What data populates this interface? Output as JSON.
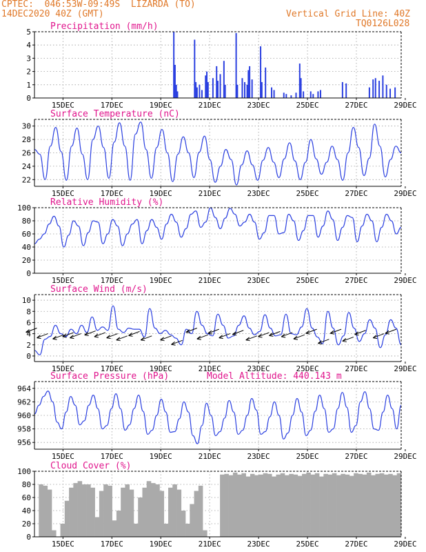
{
  "header": {
    "line1": "CPTEC:  046:53W-09:49S  LIZARDA (TO)",
    "line2": "14DEC2020 40Z (GMT)",
    "grid_note": "Vertical Grid Line: 40Z",
    "code": "TQ0126L028"
  },
  "colors": {
    "header": "#e07828",
    "panel_title": "#e0148c",
    "series": "#2a3fe0",
    "cloud": "#aaaaaa",
    "wind_arrow": "#000000"
  },
  "chart_data": [
    {
      "type": "bar",
      "title": "Precipitation (mm/h)",
      "x_ticks": [
        "15DEC",
        "17DEC",
        "19DEC",
        "21DEC",
        "23DEC",
        "25DEC",
        "27DEC",
        "29DEC"
      ],
      "ylim": [
        0,
        5
      ],
      "y_ticks": [
        0,
        1,
        2,
        3,
        4,
        5
      ],
      "grid": true,
      "events": [
        {
          "day": 19.7,
          "value": 5.0
        },
        {
          "day": 19.75,
          "value": 2.5
        },
        {
          "day": 19.8,
          "value": 1.0
        },
        {
          "day": 19.85,
          "value": 0.5
        },
        {
          "day": 20.55,
          "value": 4.4
        },
        {
          "day": 20.6,
          "value": 1.2
        },
        {
          "day": 20.65,
          "value": 0.8
        },
        {
          "day": 20.75,
          "value": 1.0
        },
        {
          "day": 20.85,
          "value": 0.6
        },
        {
          "day": 21.0,
          "value": 1.7
        },
        {
          "day": 21.05,
          "value": 2.0
        },
        {
          "day": 21.1,
          "value": 1.2
        },
        {
          "day": 21.3,
          "value": 1.5
        },
        {
          "day": 21.45,
          "value": 2.4
        },
        {
          "day": 21.5,
          "value": 1.3
        },
        {
          "day": 21.6,
          "value": 1.8
        },
        {
          "day": 21.75,
          "value": 2.8
        },
        {
          "day": 21.8,
          "value": 1.0
        },
        {
          "day": 22.25,
          "value": 4.9
        },
        {
          "day": 22.3,
          "value": 1.0
        },
        {
          "day": 22.5,
          "value": 1.5
        },
        {
          "day": 22.6,
          "value": 1.2
        },
        {
          "day": 22.7,
          "value": 1.0
        },
        {
          "day": 22.75,
          "value": 2.1
        },
        {
          "day": 22.8,
          "value": 2.4
        },
        {
          "day": 22.9,
          "value": 1.4
        },
        {
          "day": 23.25,
          "value": 3.9
        },
        {
          "day": 23.3,
          "value": 1.2
        },
        {
          "day": 23.45,
          "value": 2.3
        },
        {
          "day": 23.7,
          "value": 0.8
        },
        {
          "day": 23.8,
          "value": 0.6
        },
        {
          "day": 24.2,
          "value": 0.4
        },
        {
          "day": 24.3,
          "value": 0.3
        },
        {
          "day": 24.5,
          "value": 0.2
        },
        {
          "day": 24.7,
          "value": 0.4
        },
        {
          "day": 24.85,
          "value": 2.6
        },
        {
          "day": 24.9,
          "value": 1.5
        },
        {
          "day": 25.0,
          "value": 0.5
        },
        {
          "day": 25.3,
          "value": 0.5
        },
        {
          "day": 25.4,
          "value": 0.3
        },
        {
          "day": 25.6,
          "value": 0.5
        },
        {
          "day": 25.7,
          "value": 0.6
        },
        {
          "day": 26.6,
          "value": 1.2
        },
        {
          "day": 26.75,
          "value": 1.1
        },
        {
          "day": 27.7,
          "value": 0.8
        },
        {
          "day": 27.85,
          "value": 1.4
        },
        {
          "day": 27.95,
          "value": 1.5
        },
        {
          "day": 28.1,
          "value": 1.3
        },
        {
          "day": 28.25,
          "value": 1.7
        },
        {
          "day": 28.4,
          "value": 1.0
        },
        {
          "day": 28.55,
          "value": 0.7
        },
        {
          "day": 28.75,
          "value": 0.8
        }
      ]
    },
    {
      "type": "line",
      "title": "Surface Temperature (nC)",
      "x_ticks": [
        "15DEC",
        "17DEC",
        "19DEC",
        "21DEC",
        "23DEC",
        "25DEC",
        "27DEC",
        "29DEC"
      ],
      "ylim": [
        21,
        31
      ],
      "y_ticks": [
        22,
        24,
        26,
        28,
        30
      ],
      "grid": true,
      "series": [
        {
          "values": [
            26.5,
            25.8,
            22.0,
            27.0,
            29.8,
            26.2,
            21.9,
            27.0,
            29.7,
            25.8,
            22.0,
            28.0,
            30.0,
            26.8,
            22.2,
            27.6,
            30.5,
            27.0,
            21.9,
            28.8,
            30.6,
            26.5,
            22.2,
            26.8,
            29.5,
            26.0,
            21.7,
            25.8,
            28.4,
            26.0,
            22.3,
            26.1,
            28.5,
            25.0,
            21.6,
            24.0,
            26.5,
            25.0,
            21.2,
            24.2,
            26.3,
            24.2,
            21.9,
            24.9,
            26.8,
            24.6,
            22.3,
            25.1,
            27.5,
            24.8,
            22.0,
            24.6,
            28.0,
            25.1,
            22.8,
            24.6,
            27.0,
            25.0,
            21.9,
            26.0,
            29.8,
            26.8,
            22.6,
            25.2,
            30.3,
            27.0,
            22.4,
            25.0,
            27.0,
            26.0
          ]
        }
      ]
    },
    {
      "type": "line",
      "title": "Relative Humidity (%)",
      "x_ticks": [
        "15DEC",
        "17DEC",
        "19DEC",
        "21DEC",
        "23DEC",
        "25DEC",
        "27DEC",
        "29DEC"
      ],
      "ylim": [
        0,
        100
      ],
      "y_ticks": [
        0,
        20,
        40,
        60,
        80,
        100
      ],
      "grid": true,
      "series": [
        {
          "values": [
            45,
            52,
            60,
            75,
            87,
            72,
            40,
            58,
            80,
            72,
            42,
            62,
            80,
            78,
            45,
            60,
            82,
            72,
            42,
            60,
            75,
            82,
            45,
            65,
            82,
            70,
            52,
            75,
            90,
            78,
            55,
            68,
            90,
            95,
            70,
            78,
            100,
            85,
            68,
            84,
            99,
            90,
            72,
            78,
            90,
            78,
            52,
            62,
            88,
            88,
            60,
            62,
            90,
            80,
            50,
            65,
            88,
            88,
            55,
            72,
            95,
            82,
            50,
            70,
            88,
            85,
            48,
            72,
            90,
            80,
            48,
            70,
            90,
            80,
            60,
            70
          ]
        }
      ]
    },
    {
      "type": "line",
      "title": "Surface Wind (m/s)",
      "x_ticks": [
        "15DEC",
        "17DEC",
        "19DEC",
        "21DEC",
        "23DEC",
        "25DEC",
        "27DEC",
        "29DEC"
      ],
      "ylim": [
        -1,
        11
      ],
      "y_ticks": [
        0,
        2,
        4,
        6,
        8,
        10
      ],
      "grid": true,
      "series": [
        {
          "values": [
            1.0,
            0.2,
            3.0,
            3.5,
            5.5,
            4.0,
            3.5,
            4.8,
            4.0,
            5.5,
            4.2,
            7.0,
            4.6,
            5.2,
            4.6,
            9.0,
            4.8,
            4.2,
            5.0,
            4.8,
            4.8,
            3.4,
            8.5,
            5.0,
            4.0,
            4.6,
            3.8,
            3.2,
            2.0,
            4.8,
            4.0,
            8.0,
            5.5,
            4.0,
            3.6,
            7.5,
            5.5,
            3.2,
            3.6,
            5.5,
            7.2,
            5.0,
            3.8,
            4.4,
            7.4,
            5.0,
            3.6,
            3.8,
            7.5,
            4.0,
            3.8,
            5.2,
            8.5,
            5.0,
            3.4,
            2.2,
            8.0,
            5.0,
            2.0,
            3.6,
            7.8,
            5.0,
            2.6,
            4.0,
            6.5,
            5.0,
            1.5,
            3.8,
            6.5,
            5.0,
            2.0
          ]
        }
      ],
      "arrows": [
        {
          "day": 14.1,
          "y": 5.0
        },
        {
          "day": 14.55,
          "y": 4.0
        },
        {
          "day": 15.2,
          "y": 3.8
        },
        {
          "day": 15.6,
          "y": 4.2
        },
        {
          "day": 15.9,
          "y": 4.0
        },
        {
          "day": 16.5,
          "y": 4.5
        },
        {
          "day": 16.9,
          "y": 4.2
        },
        {
          "day": 17.4,
          "y": 4.0
        },
        {
          "day": 17.8,
          "y": 3.6
        },
        {
          "day": 18.3,
          "y": 4.4
        },
        {
          "day": 18.8,
          "y": 3.6
        },
        {
          "day": 19.6,
          "y": 3.6
        },
        {
          "day": 20.05,
          "y": 2.8
        },
        {
          "day": 20.65,
          "y": 5.0
        },
        {
          "day": 21.1,
          "y": 3.8
        },
        {
          "day": 21.55,
          "y": 4.8
        },
        {
          "day": 22.0,
          "y": 4.0
        },
        {
          "day": 22.55,
          "y": 4.6
        },
        {
          "day": 23.1,
          "y": 3.6
        },
        {
          "day": 23.6,
          "y": 4.2
        },
        {
          "day": 24.05,
          "y": 4.4
        },
        {
          "day": 24.55,
          "y": 4.2
        },
        {
          "day": 25.05,
          "y": 3.8
        },
        {
          "day": 25.55,
          "y": 4.8
        },
        {
          "day": 26.05,
          "y": 3.0
        },
        {
          "day": 26.55,
          "y": 4.8
        },
        {
          "day": 27.05,
          "y": 3.4
        },
        {
          "day": 27.55,
          "y": 4.6
        },
        {
          "day": 28.3,
          "y": 4.0
        },
        {
          "day": 28.8,
          "y": 4.8
        }
      ]
    },
    {
      "type": "line",
      "title": "Surface Pressure (hPa)",
      "annotation": "Model Altitude: 440.143 m",
      "x_ticks": [
        "15DEC",
        "17DEC",
        "19DEC",
        "21DEC",
        "23DEC",
        "25DEC",
        "27DEC",
        "29DEC"
      ],
      "ylim": [
        955,
        965
      ],
      "y_ticks": [
        956,
        958,
        960,
        962,
        964
      ],
      "grid": true,
      "series": [
        {
          "values": [
            960.2,
            961.5,
            962.8,
            963.6,
            962.0,
            959.0,
            958.0,
            960.5,
            962.8,
            961.5,
            958.6,
            959.2,
            961.5,
            963.0,
            961.0,
            958.0,
            958.5,
            961.0,
            963.2,
            961.0,
            957.8,
            958.6,
            961.0,
            963.0,
            960.6,
            957.2,
            957.8,
            960.0,
            962.4,
            960.5,
            957.5,
            957.6,
            959.5,
            962.0,
            960.5,
            957.0,
            955.8,
            958.5,
            961.8,
            960.0,
            957.0,
            957.6,
            959.6,
            962.2,
            960.5,
            957.2,
            957.8,
            960.0,
            962.5,
            960.8,
            957.2,
            957.6,
            959.8,
            962.0,
            960.0,
            956.5,
            957.4,
            960.0,
            962.5,
            960.5,
            957.0,
            957.8,
            960.6,
            963.0,
            961.0,
            957.5,
            958.0,
            961.0,
            963.4,
            961.2,
            957.5,
            958.5,
            962.0,
            963.5,
            961.0,
            958.0,
            957.8,
            960.5,
            963.0,
            961.0,
            958.0,
            961.5
          ]
        }
      ]
    },
    {
      "type": "area",
      "title": "Cloud Cover (%)",
      "x_ticks": [
        "15DEC",
        "17DEC",
        "19DEC",
        "21DEC",
        "23DEC",
        "25DEC",
        "27DEC",
        "29DEC"
      ],
      "ylim": [
        0,
        100
      ],
      "y_ticks": [
        0,
        20,
        40,
        60,
        80,
        100
      ],
      "grid": true,
      "series": [
        {
          "values": [
            0,
            80,
            78,
            72,
            10,
            0,
            20,
            55,
            75,
            82,
            85,
            80,
            80,
            75,
            30,
            70,
            80,
            78,
            25,
            40,
            75,
            80,
            72,
            20,
            60,
            75,
            85,
            82,
            80,
            70,
            20,
            75,
            80,
            72,
            40,
            20,
            50,
            70,
            78,
            10,
            0,
            0,
            0,
            95,
            96,
            94,
            98,
            95,
            97,
            92,
            96,
            94,
            95,
            97,
            96,
            92,
            95,
            97,
            94,
            96,
            95,
            93,
            96,
            98,
            95,
            97,
            92,
            96,
            95,
            97,
            94,
            96,
            95,
            93,
            97,
            96,
            95,
            98,
            94,
            96,
            97,
            95,
            96,
            94,
            97
          ]
        }
      ]
    }
  ]
}
